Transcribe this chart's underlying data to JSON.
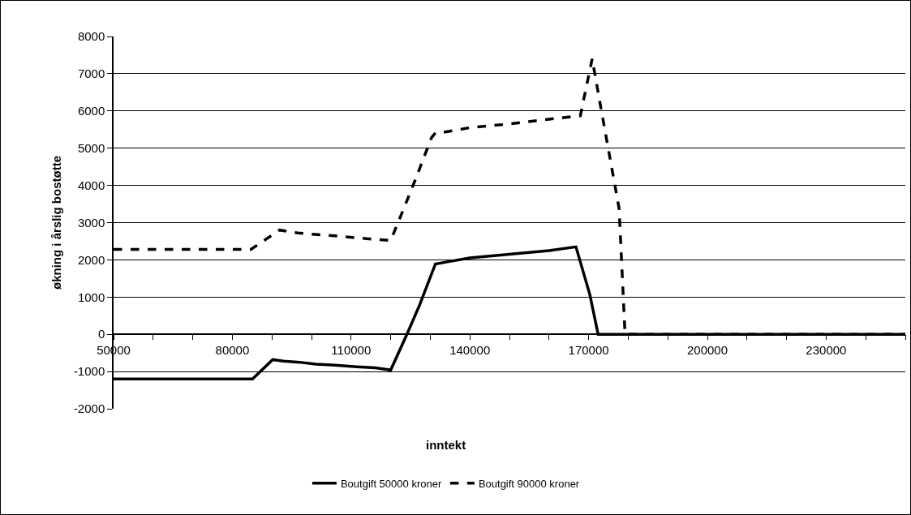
{
  "chart_data": {
    "type": "line",
    "xlabel": "inntekt",
    "ylabel": "økning i årslig bostøtte",
    "xlim": [
      50000,
      250000
    ],
    "xticks": [
      50000,
      {
        "value": 60000,
        "label": null
      },
      {
        "value": 70000,
        "label": null
      },
      80000,
      {
        "value": 90000,
        "label": null
      },
      {
        "value": 100000,
        "label": null
      },
      110000,
      {
        "value": 120000,
        "label": null
      },
      {
        "value": 130000,
        "label": null
      },
      140000,
      {
        "value": 150000,
        "label": null
      },
      {
        "value": 160000,
        "label": null
      },
      170000,
      {
        "value": 180000,
        "label": null
      },
      {
        "value": 190000,
        "label": null
      },
      200000,
      {
        "value": 210000,
        "label": null
      },
      {
        "value": 220000,
        "label": null
      },
      230000,
      {
        "value": 240000,
        "label": null
      },
      {
        "value": 250000,
        "label": null
      }
    ],
    "ylim": [
      -2000,
      8000
    ],
    "yticks": [
      -2000,
      -1000,
      0,
      1000,
      2000,
      3000,
      4000,
      5000,
      6000,
      7000,
      8000
    ],
    "grid": "y",
    "legend": "bottom",
    "marker": "none",
    "series": [
      {
        "name": "Boutgift 50000 kroner",
        "color": "#000000",
        "line_style": "solid",
        "x": [
          50000,
          85100,
          90200,
          92900,
          97000,
          101100,
          105900,
          111400,
          116100,
          120000,
          124100,
          127200,
          131300,
          134000,
          140000,
          150000,
          160000,
          166800,
          170300,
          172400,
          180000,
          250000
        ],
        "values": [
          -1200,
          -1200,
          -680,
          -720,
          -750,
          -800,
          -830,
          -870,
          -900,
          -960,
          0,
          760,
          1890,
          1940,
          2050,
          2150,
          2250,
          2350,
          1070,
          0,
          0,
          0
        ]
      },
      {
        "name": "Boutgift 90000 kroner",
        "color": "#000000",
        "line_style": "dashed",
        "x": [
          50000,
          84700,
          91900,
          96600,
          105200,
          113900,
          120000,
          122700,
          126400,
          130300,
          131300,
          133400,
          140000,
          150000,
          160000,
          167900,
          170900,
          173000,
          177700,
          179200,
          250000
        ],
        "values": [
          2280,
          2280,
          2800,
          2720,
          2650,
          2570,
          2520,
          3220,
          4200,
          5280,
          5410,
          5430,
          5550,
          5650,
          5780,
          5870,
          7400,
          6140,
          3380,
          0,
          0
        ]
      }
    ]
  }
}
